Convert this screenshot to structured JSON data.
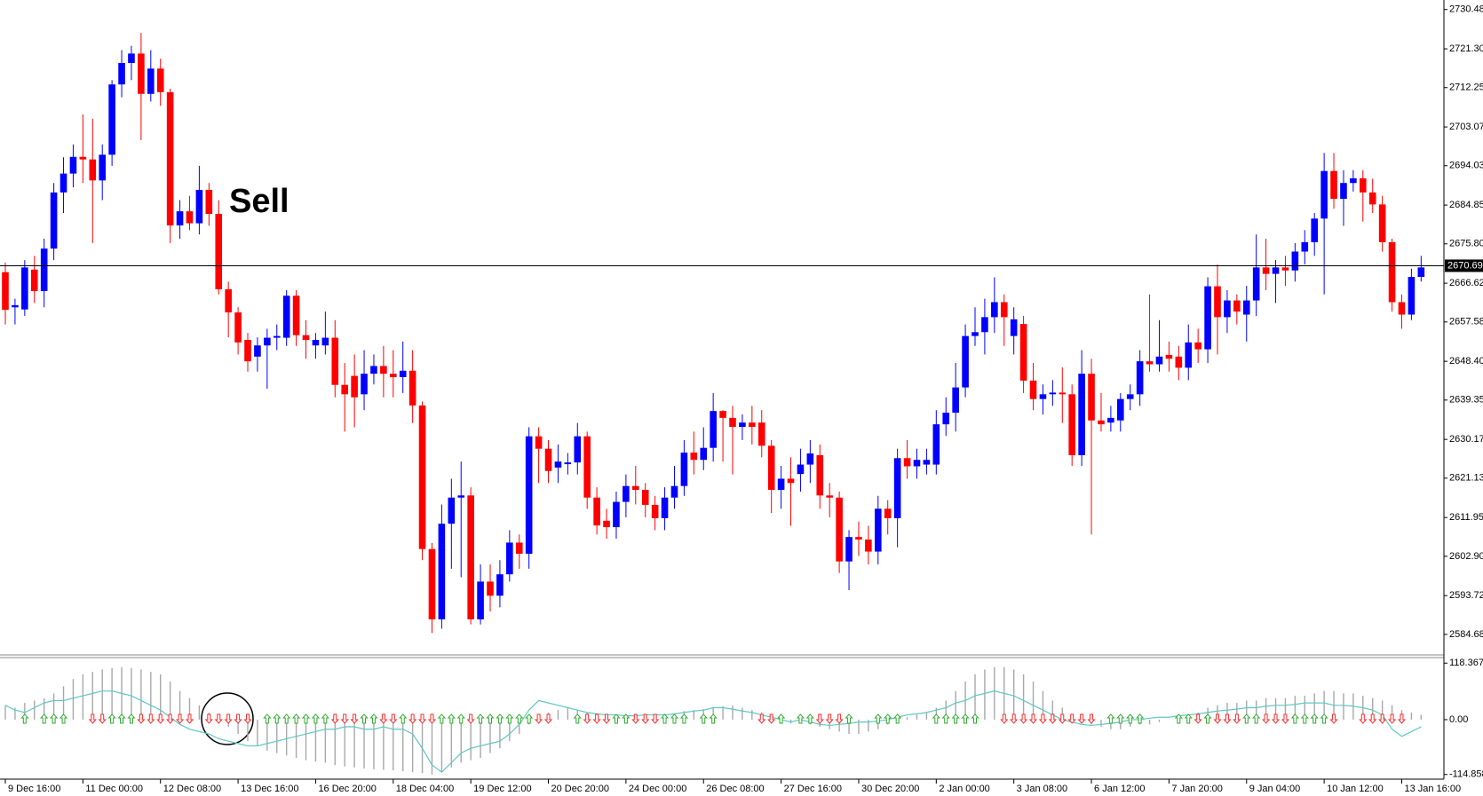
{
  "chart_data": [
    {
      "type": "candlestick",
      "annotations": [
        {
          "text": "Sell"
        }
      ],
      "up_color": "#0000ff",
      "down_color": "#ff0000",
      "last_price": {
        "value": 2670.694,
        "label": "2670.694"
      },
      "ylim": [
        2580.1,
        2732.7
      ],
      "yticks": [
        {
          "value": 2730.48,
          "label": "2730.480"
        },
        {
          "value": 2721.3,
          "label": "2721.300"
        },
        {
          "value": 2712.255,
          "label": "2712.255"
        },
        {
          "value": 2703.075,
          "label": "2703.075"
        },
        {
          "value": 2694.03,
          "label": "2694.030"
        },
        {
          "value": 2684.85,
          "label": "2684.850"
        },
        {
          "value": 2675.805,
          "label": "2675.805"
        },
        {
          "value": 2666.625,
          "label": "2666.625"
        },
        {
          "value": 2657.58,
          "label": "2657.580"
        },
        {
          "value": 2648.4,
          "label": "2648.400"
        },
        {
          "value": 2639.355,
          "label": "2639.355"
        },
        {
          "value": 2630.175,
          "label": "2630.175"
        },
        {
          "value": 2621.13,
          "label": "2621.130"
        },
        {
          "value": 2611.95,
          "label": "2611.950"
        },
        {
          "value": 2602.905,
          "label": "2602.905"
        },
        {
          "value": 2593.725,
          "label": "2593.725"
        },
        {
          "value": 2584.68,
          "label": "2584.680"
        }
      ],
      "xticks": [
        {
          "value": 0,
          "label": "9 Dec 16:00"
        },
        {
          "value": 8,
          "label": "11 Dec 00:00"
        },
        {
          "value": 16,
          "label": "12 Dec 08:00"
        },
        {
          "value": 24,
          "label": "13 Dec 16:00"
        },
        {
          "value": 32,
          "label": "16 Dec 20:00"
        },
        {
          "value": 40,
          "label": "18 Dec 04:00"
        },
        {
          "value": 48,
          "label": "19 Dec 12:00"
        },
        {
          "value": 56,
          "label": "20 Dec 20:00"
        },
        {
          "value": 64,
          "label": "24 Dec 00:00"
        },
        {
          "value": 72,
          "label": "26 Dec 08:00"
        },
        {
          "value": 80,
          "label": "27 Dec 16:00"
        },
        {
          "value": 88,
          "label": "30 Dec 20:00"
        },
        {
          "value": 96,
          "label": "2 Jan 00:00"
        },
        {
          "value": 104,
          "label": "3 Jan 08:00"
        },
        {
          "value": 112,
          "label": "6 Jan 12:00"
        },
        {
          "value": 120,
          "label": "7 Jan 20:00"
        },
        {
          "value": 128,
          "label": "9 Jan 04:00"
        },
        {
          "value": 136,
          "label": "10 Jan 12:00"
        },
        {
          "value": 144,
          "label": "13 Jan 16:00"
        }
      ],
      "open": [
        2669.2,
        2661.0,
        2660.5,
        2669.8,
        2664.8,
        2674.7,
        2687.8,
        2692.2,
        2696.1,
        2695.5,
        2690.6,
        2696.6,
        2713.0,
        2718.0,
        2720.2,
        2710.8,
        2716.7,
        2711.2,
        2680.1,
        2683.4,
        2680.6,
        2688.4,
        2682.8,
        2665.2,
        2659.8,
        2653.4,
        2649.5,
        2652.1,
        2653.9,
        2653.9,
        2663.7,
        2654.5,
        2652.1,
        2652.1,
        2653.9,
        2642.9,
        2645.0,
        2640.7,
        2645.5,
        2647.3,
        2645.5,
        2644.7,
        2646.2,
        2638.1,
        2604.6,
        2588.2,
        2610.5,
        2616.6,
        2617.1,
        2588.2,
        2597.0,
        2593.7,
        2598.7,
        2606.1,
        2603.5,
        2630.9,
        2628.0,
        2623.6,
        2624.4,
        2624.8,
        2630.9,
        2616.6,
        2611.2,
        2609.7,
        2615.6,
        2619.3,
        2618.4,
        2614.9,
        2611.8,
        2616.6,
        2619.3,
        2627.1,
        2625.4,
        2628.2,
        2636.8,
        2635.2,
        2633.1,
        2634.1,
        2634.1,
        2628.7,
        2618.4,
        2621.0,
        2622.1,
        2624.3,
        2626.5,
        2617.1,
        2616.6,
        2601.7,
        2607.4,
        2606.8,
        2604.0,
        2614.0,
        2611.8,
        2625.8,
        2623.9,
        2624.3,
        2624.3,
        2633.7,
        2636.4,
        2642.3,
        2654.3,
        2655.2,
        2658.7,
        2662.2,
        2654.3,
        2657.1,
        2643.9,
        2639.6,
        2640.7,
        2641.1,
        2640.7,
        2626.5,
        2645.5,
        2634.6,
        2634.1,
        2634.6,
        2639.6,
        2640.7,
        2648.4,
        2647.7,
        2649.9,
        2649.5,
        2646.9,
        2652.8,
        2651.2,
        2665.9,
        2658.7,
        2662.6,
        2659.3,
        2662.6,
        2670.3,
        2668.8,
        2670.3,
        2669.6,
        2674.0,
        2676.2,
        2681.7,
        2692.8,
        2686.3,
        2690.0,
        2691.1,
        2687.8,
        2685.0,
        2676.2,
        2662.2,
        2659.3,
        2668.1
      ],
      "high": [
        2671.4,
        2663,
        2672,
        2673,
        2677,
        2690,
        2696,
        2699,
        2706,
        2705,
        2699,
        2714,
        2721,
        2722,
        2725,
        2721,
        2719,
        2712,
        2686,
        2687,
        2694,
        2690,
        2686,
        2667,
        2661,
        2655,
        2654,
        2656,
        2657,
        2665,
        2665,
        2658,
        2655,
        2660,
        2658,
        2648,
        2650,
        2651,
        2650,
        2652,
        2651,
        2653,
        2651,
        2639,
        2606,
        2615,
        2621,
        2625,
        2619,
        2601,
        2601,
        2602,
        2609,
        2608,
        2633,
        2633,
        2630,
        2629,
        2627,
        2634,
        2632,
        2619,
        2614,
        2618,
        2622,
        2624,
        2620,
        2617,
        2619,
        2624,
        2630,
        2632,
        2633,
        2641,
        2637,
        2638,
        2636,
        2638,
        2637,
        2630,
        2624,
        2626,
        2628,
        2630,
        2629,
        2620,
        2618,
        2609,
        2611,
        2610,
        2617,
        2616,
        2628,
        2630,
        2628,
        2628,
        2637,
        2640,
        2648,
        2657,
        2661,
        2663,
        2668,
        2664,
        2661,
        2659,
        2648,
        2643,
        2644,
        2647,
        2643,
        2651,
        2649,
        2641,
        2638,
        2641,
        2643,
        2651,
        2664,
        2658,
        2653,
        2652,
        2657,
        2656,
        2668,
        2671,
        2665,
        2664,
        2666,
        2678,
        2677,
        2672,
        2673,
        2676,
        2679,
        2683,
        2697,
        2697,
        2693,
        2693,
        2693,
        2691,
        2687,
        2677,
        2664,
        2670,
        2673
      ],
      "low": [
        2657,
        2657,
        2659,
        2662,
        2661,
        2672,
        2683,
        2689,
        2690,
        2676,
        2686,
        2694,
        2710,
        2714,
        2700,
        2709,
        2708,
        2676,
        2677,
        2679,
        2678,
        2680,
        2664,
        2654,
        2650,
        2646,
        2646,
        2642,
        2651,
        2652,
        2652,
        2649,
        2649,
        2650,
        2640,
        2632,
        2633,
        2637,
        2643,
        2640,
        2640,
        2641,
        2634,
        2602,
        2585,
        2586,
        2600,
        2598,
        2587,
        2587,
        2590,
        2591,
        2597,
        2600,
        2600,
        2620,
        2620,
        2620,
        2622,
        2622,
        2614,
        2608,
        2607,
        2607,
        2612,
        2615,
        2612,
        2609,
        2609,
        2614,
        2617,
        2622,
        2623,
        2625,
        2625,
        2622,
        2630,
        2629,
        2626,
        2613,
        2614,
        2610,
        2618,
        2620,
        2614,
        2612,
        2599,
        2595,
        2603,
        2601,
        2601,
        2608,
        2605,
        2621,
        2621,
        2622,
        2622,
        2631,
        2632,
        2640,
        2652,
        2650,
        2655,
        2652,
        2650,
        2641,
        2637,
        2636,
        2638,
        2634,
        2624,
        2624,
        2608,
        2632,
        2632,
        2632,
        2637,
        2638,
        2646,
        2646,
        2646,
        2644,
        2644,
        2648,
        2648,
        2650,
        2655,
        2657,
        2653,
        2659,
        2665,
        2662,
        2666,
        2667,
        2671,
        2673,
        2664,
        2684,
        2680,
        2688,
        2681,
        2683,
        2674,
        2660,
        2656,
        2658,
        2667
      ],
      "close": [
        2660.4,
        2661.5,
        2670.3,
        2664.8,
        2674.7,
        2687.8,
        2692.2,
        2696.1,
        2695.5,
        2690.6,
        2696.6,
        2713.0,
        2718.0,
        2720.2,
        2710.8,
        2716.7,
        2711.2,
        2680.1,
        2683.4,
        2680.6,
        2688.4,
        2682.8,
        2665.2,
        2659.8,
        2652.8,
        2648.4,
        2652.1,
        2653.9,
        2654.3,
        2663.7,
        2654.5,
        2653.4,
        2653.4,
        2653.9,
        2642.9,
        2640.7,
        2640.0,
        2645.5,
        2647.3,
        2645.5,
        2644.7,
        2646.2,
        2638.1,
        2604.6,
        2588.2,
        2610.5,
        2616.6,
        2617.1,
        2588.2,
        2597.0,
        2593.7,
        2598.7,
        2606.1,
        2603.5,
        2630.9,
        2628.0,
        2622.8,
        2625.0,
        2624.8,
        2630.9,
        2616.6,
        2610.1,
        2609.7,
        2615.6,
        2619.3,
        2618.4,
        2614.9,
        2611.8,
        2616.6,
        2619.3,
        2627.1,
        2625.4,
        2628.2,
        2636.8,
        2635.2,
        2633.1,
        2634.1,
        2633.1,
        2628.7,
        2618.4,
        2621.0,
        2620.0,
        2624.3,
        2626.9,
        2617.1,
        2616.6,
        2601.7,
        2607.4,
        2606.8,
        2604.0,
        2614.0,
        2611.8,
        2625.8,
        2623.9,
        2625.4,
        2625.4,
        2633.7,
        2636.4,
        2642.3,
        2654.3,
        2655.2,
        2658.7,
        2662.2,
        2658.7,
        2658.2,
        2643.9,
        2639.6,
        2640.7,
        2641.1,
        2640.7,
        2626.5,
        2645.5,
        2634.6,
        2633.7,
        2635.2,
        2639.6,
        2640.7,
        2648.4,
        2647.7,
        2649.5,
        2649.0,
        2646.9,
        2652.8,
        2651.2,
        2665.9,
        2658.7,
        2662.6,
        2660.0,
        2662.6,
        2670.3,
        2668.8,
        2670.3,
        2669.6,
        2674.0,
        2676.2,
        2681.7,
        2692.8,
        2686.3,
        2690.0,
        2691.1,
        2687.8,
        2685.0,
        2676.2,
        2662.2,
        2659.3,
        2668.1,
        2670.3
      ]
    },
    {
      "type": "indicator",
      "ylim": [
        -124.6,
        130
      ],
      "yticks": [
        118.3676,
        {
          "value": 0,
          "label": "0.00"
        },
        -114.8582
      ],
      "series": [
        {
          "type": "histogram",
          "color": "#a8a8a8",
          "values": [
            30,
            25,
            35,
            40,
            45,
            55,
            70,
            85,
            95,
            100,
            105,
            108,
            110,
            108,
            105,
            100,
            95,
            80,
            60,
            45,
            30,
            15,
            0,
            -15,
            -30,
            -45,
            -55,
            -65,
            -70,
            -75,
            -80,
            -85,
            -88,
            -90,
            -95,
            -98,
            -100,
            -102,
            -104,
            -105,
            -106,
            -108,
            -110,
            -112,
            -115,
            -110,
            -100,
            -90,
            -85,
            -80,
            -70,
            -60,
            -45,
            -30,
            -10,
            5,
            15,
            20,
            25,
            20,
            15,
            10,
            5,
            5,
            10,
            10,
            5,
            5,
            8,
            12,
            18,
            20,
            22,
            25,
            28,
            30,
            25,
            20,
            15,
            5,
            -5,
            -8,
            -5,
            -10,
            -15,
            -20,
            -25,
            -30,
            -30,
            -25,
            -20,
            -10,
            0,
            5,
            10,
            15,
            25,
            40,
            60,
            80,
            95,
            105,
            110,
            110,
            105,
            95,
            80,
            60,
            40,
            25,
            10,
            -5,
            -10,
            -15,
            -20,
            -20,
            -15,
            -10,
            -10,
            -5,
            0,
            5,
            10,
            15,
            25,
            30,
            35,
            35,
            40,
            40,
            45,
            45,
            45,
            50,
            50,
            55,
            60,
            60,
            55,
            55,
            50,
            45,
            40,
            30,
            20,
            15,
            10
          ]
        },
        {
          "type": "line",
          "color": "#5fc7c4",
          "values": [
            30,
            20,
            15,
            25,
            35,
            40,
            40,
            45,
            50,
            55,
            60,
            60,
            55,
            50,
            40,
            30,
            20,
            5,
            -10,
            -20,
            -25,
            -30,
            -40,
            -45,
            -50,
            -55,
            -55,
            -50,
            -45,
            -40,
            -35,
            -30,
            -25,
            -20,
            -20,
            -15,
            -15,
            -20,
            -20,
            -15,
            -20,
            -20,
            -30,
            -60,
            -95,
            -110,
            -90,
            -70,
            -60,
            -55,
            -50,
            -45,
            -30,
            -10,
            20,
            40,
            35,
            30,
            25,
            20,
            15,
            12,
            10,
            10,
            8,
            8,
            10,
            10,
            10,
            12,
            15,
            18,
            20,
            25,
            25,
            22,
            18,
            15,
            10,
            5,
            0,
            -5,
            0,
            -5,
            -10,
            -12,
            -10,
            -8,
            -5,
            -5,
            -3,
            0,
            5,
            10,
            12,
            15,
            20,
            25,
            35,
            40,
            50,
            55,
            60,
            55,
            50,
            40,
            30,
            20,
            10,
            0,
            -5,
            -10,
            -12,
            -10,
            -8,
            -5,
            0,
            0,
            3,
            5,
            5,
            8,
            10,
            12,
            15,
            18,
            20,
            22,
            25,
            25,
            28,
            30,
            30,
            32,
            35,
            35,
            35,
            30,
            30,
            28,
            25,
            20,
            10,
            -20,
            -35,
            -25,
            -15
          ]
        },
        {
          "type": "arrows",
          "up_color": "#2eaa2e",
          "down_color": "#ff2a2a",
          "values": [
            null,
            null,
            1,
            null,
            1,
            1,
            1,
            null,
            null,
            -1,
            -1,
            1,
            1,
            1,
            -1,
            -1,
            -1,
            -1,
            -1,
            -1,
            null,
            -1,
            -1,
            -1,
            -1,
            -1,
            null,
            1,
            1,
            1,
            1,
            1,
            1,
            1,
            -1,
            -1,
            -1,
            1,
            1,
            -1,
            -1,
            1,
            -1,
            -1,
            -1,
            1,
            1,
            1,
            -1,
            1,
            1,
            1,
            1,
            1,
            1,
            -1,
            -1,
            null,
            null,
            1,
            -1,
            -1,
            -1,
            1,
            1,
            -1,
            -1,
            -1,
            1,
            1,
            1,
            null,
            1,
            1,
            null,
            null,
            null,
            null,
            -1,
            -1,
            1,
            null,
            1,
            1,
            -1,
            -1,
            -1,
            1,
            null,
            null,
            1,
            1,
            1,
            null,
            null,
            null,
            1,
            1,
            1,
            1,
            1,
            null,
            null,
            -1,
            -1,
            -1,
            -1,
            -1,
            -1,
            -1,
            -1,
            -1,
            -1,
            null,
            1,
            1,
            1,
            1,
            null,
            null,
            null,
            1,
            1,
            -1,
            1,
            -1,
            -1,
            -1,
            1,
            1,
            -1,
            -1,
            -1,
            1,
            1,
            1,
            1,
            -1,
            null,
            null,
            -1,
            -1,
            -1,
            -1,
            -1,
            null,
            null
          ]
        }
      ]
    }
  ]
}
